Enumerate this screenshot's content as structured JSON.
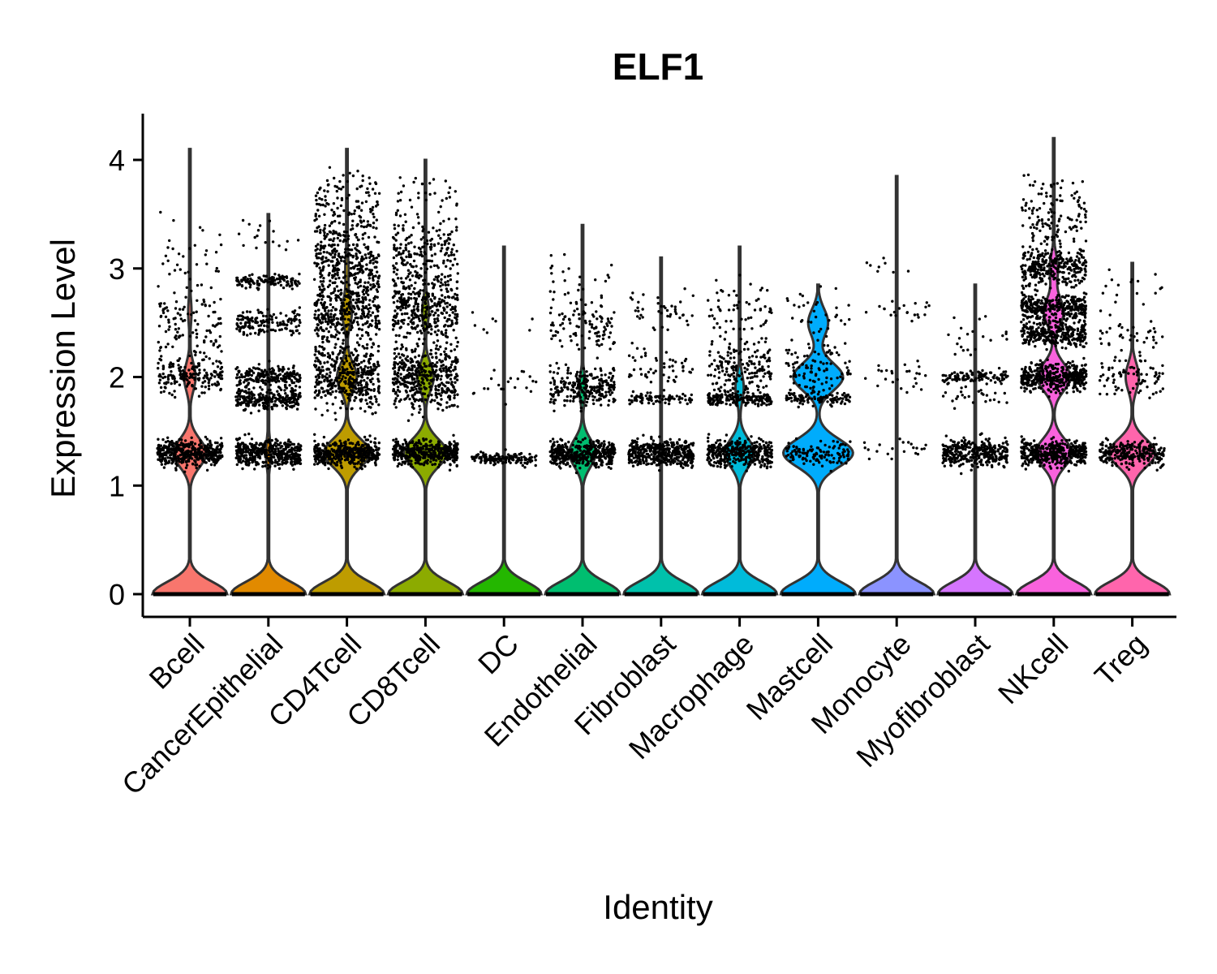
{
  "chart_data": {
    "type": "violin",
    "title": "ELF1",
    "xlabel": "Identity",
    "ylabel": "Expression Level",
    "ylim": [
      -0.2,
      4.4
    ],
    "yticks": [
      "0",
      "1",
      "2",
      "3",
      "4"
    ],
    "jitter_points": true,
    "grid": false,
    "legend": "none",
    "categories": [
      "Bcell",
      "CancerEpithelial",
      "CD4Tcell",
      "CD8Tcell",
      "DC",
      "Endothelial",
      "Fibroblast",
      "Macrophage",
      "Mastcell",
      "Monocyte",
      "Myofibroblast",
      "NKcell",
      "Treg"
    ],
    "colors": [
      "#F8766D",
      "#E18A00",
      "#BE9C00",
      "#8CAB00",
      "#24B700",
      "#00BE70",
      "#00C1AB",
      "#00BBDA",
      "#00ACFC",
      "#8B93FF",
      "#D575FE",
      "#F962DD",
      "#FF65AC"
    ],
    "series": [
      {
        "name": "Bcell",
        "max": 4.1,
        "zero_width": 0.45,
        "bands": [
          [
            1.3,
            0.2
          ],
          [
            2.0,
            0.07
          ],
          [
            2.6,
            0.02
          ]
        ],
        "point_bands": [
          [
            1.3,
            0.1,
            1.0
          ],
          [
            2.0,
            0.15,
            0.45
          ],
          [
            2.5,
            0.25,
            0.25
          ],
          [
            3.1,
            0.35,
            0.08
          ]
        ]
      },
      {
        "name": "CancerEpithelial",
        "max": 3.5,
        "zero_width": 0.45,
        "bands": [
          [
            1.3,
            0.03
          ],
          [
            1.8,
            0.01
          ]
        ],
        "point_bands": [
          [
            1.3,
            0.1,
            1.0
          ],
          [
            1.8,
            0.08,
            0.6
          ],
          [
            2.0,
            0.08,
            0.5
          ],
          [
            2.5,
            0.1,
            0.35
          ],
          [
            2.88,
            0.05,
            0.3
          ],
          [
            3.3,
            0.15,
            0.04
          ]
        ]
      },
      {
        "name": "CD4Tcell",
        "max": 4.1,
        "zero_width": 0.45,
        "bands": [
          [
            1.3,
            0.28
          ],
          [
            2.0,
            0.12
          ],
          [
            2.6,
            0.06
          ],
          [
            3.0,
            0.02
          ]
        ],
        "point_bands": [
          [
            1.3,
            0.1,
            1.0
          ],
          [
            2.0,
            0.25,
            1.0
          ],
          [
            2.6,
            0.25,
            0.9
          ],
          [
            3.1,
            0.25,
            0.7
          ],
          [
            3.6,
            0.25,
            0.3
          ]
        ]
      },
      {
        "name": "CD8Tcell",
        "max": 4.0,
        "zero_width": 0.45,
        "bands": [
          [
            1.3,
            0.26
          ],
          [
            2.0,
            0.1
          ],
          [
            2.6,
            0.04
          ]
        ],
        "point_bands": [
          [
            1.3,
            0.1,
            1.0
          ],
          [
            2.0,
            0.25,
            1.0
          ],
          [
            2.6,
            0.25,
            0.8
          ],
          [
            3.1,
            0.25,
            0.45
          ],
          [
            3.6,
            0.25,
            0.12
          ]
        ]
      },
      {
        "name": "DC",
        "max": 3.2,
        "zero_width": 0.45,
        "bands": [
          [
            1.3,
            0.005
          ]
        ],
        "point_bands": [
          [
            1.25,
            0.05,
            0.35
          ],
          [
            1.95,
            0.2,
            0.05
          ],
          [
            2.5,
            0.1,
            0.02
          ]
        ]
      },
      {
        "name": "Endothelial",
        "max": 3.4,
        "zero_width": 0.45,
        "bands": [
          [
            1.3,
            0.16
          ],
          [
            1.9,
            0.04
          ]
        ],
        "point_bands": [
          [
            1.3,
            0.1,
            1.0
          ],
          [
            1.9,
            0.15,
            0.6
          ],
          [
            2.5,
            0.2,
            0.25
          ],
          [
            2.9,
            0.2,
            0.05
          ]
        ]
      },
      {
        "name": "Fibroblast",
        "max": 3.1,
        "zero_width": 0.45,
        "bands": [
          [
            1.3,
            0.005
          ]
        ],
        "point_bands": [
          [
            1.3,
            0.1,
            1.0
          ],
          [
            1.8,
            0.05,
            0.2
          ],
          [
            2.1,
            0.15,
            0.12
          ],
          [
            2.6,
            0.15,
            0.1
          ]
        ]
      },
      {
        "name": "Macrophage",
        "max": 3.2,
        "zero_width": 0.45,
        "bands": [
          [
            1.3,
            0.18
          ],
          [
            1.9,
            0.05
          ]
        ],
        "point_bands": [
          [
            1.3,
            0.1,
            0.9
          ],
          [
            1.8,
            0.05,
            0.45
          ],
          [
            2.1,
            0.2,
            0.4
          ],
          [
            2.6,
            0.25,
            0.15
          ]
        ]
      },
      {
        "name": "Mastcell",
        "max": 2.85,
        "zero_width": 0.45,
        "bands": [
          [
            1.3,
            0.42
          ],
          [
            2.0,
            0.3
          ],
          [
            2.5,
            0.12
          ]
        ],
        "point_bands": [
          [
            1.3,
            0.1,
            0.3
          ],
          [
            1.8,
            0.05,
            0.25
          ],
          [
            2.1,
            0.2,
            0.25
          ],
          [
            2.6,
            0.2,
            0.08
          ]
        ]
      },
      {
        "name": "Monocyte",
        "max": 3.85,
        "zero_width": 0.45,
        "bands": [
          [
            1.3,
            0.003
          ]
        ],
        "point_bands": [
          [
            1.35,
            0.1,
            0.05
          ],
          [
            2.0,
            0.15,
            0.06
          ],
          [
            2.6,
            0.1,
            0.05
          ],
          [
            3.0,
            0.1,
            0.02
          ]
        ]
      },
      {
        "name": "Myofibroblast",
        "max": 2.85,
        "zero_width": 0.45,
        "bands": [
          [
            1.3,
            0.005
          ]
        ],
        "point_bands": [
          [
            1.3,
            0.1,
            0.8
          ],
          [
            2.0,
            0.05,
            0.25
          ],
          [
            1.8,
            0.1,
            0.06
          ],
          [
            2.4,
            0.2,
            0.05
          ]
        ]
      },
      {
        "name": "NKcell",
        "max": 4.2,
        "zero_width": 0.45,
        "bands": [
          [
            1.3,
            0.22
          ],
          [
            2.0,
            0.2
          ],
          [
            2.6,
            0.12
          ],
          [
            3.0,
            0.05
          ]
        ],
        "point_bands": [
          [
            1.3,
            0.1,
            1.0
          ],
          [
            2.0,
            0.1,
            1.0
          ],
          [
            2.4,
            0.1,
            0.7
          ],
          [
            2.65,
            0.1,
            0.8
          ],
          [
            3.0,
            0.15,
            0.7
          ],
          [
            3.5,
            0.3,
            0.3
          ]
        ]
      },
      {
        "name": "Treg",
        "max": 3.05,
        "zero_width": 0.45,
        "bands": [
          [
            1.3,
            0.28
          ],
          [
            2.0,
            0.08
          ]
        ],
        "point_bands": [
          [
            1.3,
            0.1,
            0.6
          ],
          [
            2.0,
            0.15,
            0.2
          ],
          [
            2.4,
            0.1,
            0.08
          ],
          [
            2.8,
            0.2,
            0.04
          ]
        ]
      }
    ]
  }
}
